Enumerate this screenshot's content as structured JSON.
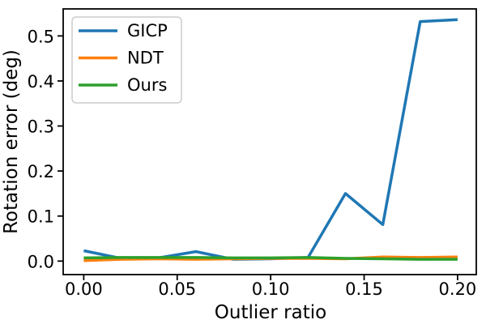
{
  "chart_data": {
    "type": "line",
    "title": "",
    "xlabel": "Outlier ratio",
    "ylabel": "Rotation error (deg)",
    "x": [
      0.0,
      0.02,
      0.04,
      0.06,
      0.08,
      0.1,
      0.12,
      0.14,
      0.16,
      0.18,
      0.2
    ],
    "series": [
      {
        "name": "GICP",
        "color": "#1f77b4",
        "values": [
          0.023,
          0.006,
          0.007,
          0.021,
          0.004,
          0.005,
          0.008,
          0.15,
          0.081,
          0.532,
          0.536
        ]
      },
      {
        "name": "NDT",
        "color": "#ff7f0e",
        "values": [
          0.001,
          0.004,
          0.005,
          0.004,
          0.005,
          0.006,
          0.006,
          0.005,
          0.009,
          0.008,
          0.009
        ]
      },
      {
        "name": "Ours",
        "color": "#2ca02c",
        "values": [
          0.007,
          0.008,
          0.008,
          0.008,
          0.007,
          0.007,
          0.008,
          0.006,
          0.005,
          0.004,
          0.004
        ]
      }
    ],
    "xticks": {
      "values": [
        0.0,
        0.05,
        0.1,
        0.15,
        0.2
      ],
      "labels": [
        "0.00",
        "0.05",
        "0.10",
        "0.15",
        "0.20"
      ]
    },
    "yticks": {
      "values": [
        0.0,
        0.1,
        0.2,
        0.3,
        0.4,
        0.5
      ],
      "labels": [
        "0.0",
        "0.1",
        "0.2",
        "0.3",
        "0.4",
        "0.5"
      ]
    },
    "xlim": [
      -0.011,
      0.21
    ],
    "ylim": [
      -0.03,
      0.56
    ],
    "grid": false,
    "legend": {
      "position": "upper left",
      "entries": [
        "GICP",
        "NDT",
        "Ours"
      ]
    }
  },
  "style": {
    "background": "#ffffff",
    "axis_color": "#000000",
    "text_color": "#000000",
    "legend_border": "#cccccc",
    "legend_fill": "#ffffff"
  }
}
